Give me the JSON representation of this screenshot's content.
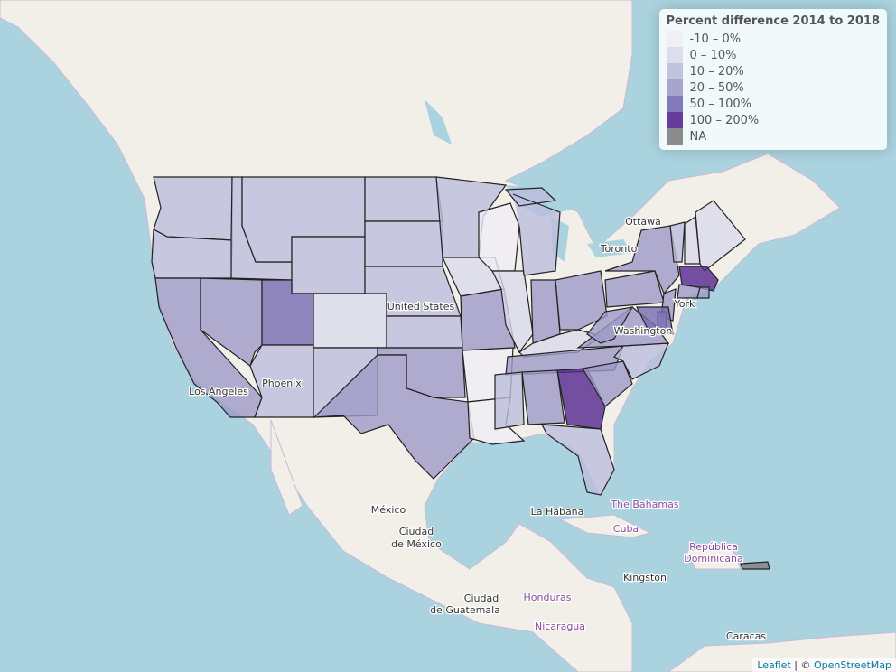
{
  "legend": {
    "title": "Percent difference 2014 to 2018",
    "items": [
      {
        "label": "-10 – 0%",
        "color": "#efedf5"
      },
      {
        "label": "0 – 10%",
        "color": "#dadaeb"
      },
      {
        "label": "10 – 20%",
        "color": "#bcbddc"
      },
      {
        "label": "20 – 50%",
        "color": "#9e9ac8"
      },
      {
        "label": "50 – 100%",
        "color": "#756bb1"
      },
      {
        "label": "100 – 200%",
        "color": "#54278f"
      },
      {
        "label": "NA",
        "color": "#808080"
      }
    ]
  },
  "places": [
    "Ottawa",
    "Toronto",
    "York",
    "Washington",
    "United States",
    "Los Angeles",
    "Phoenix",
    "México",
    "Ciudad",
    "de México",
    "La Habana",
    "The Bahamas",
    "Cuba",
    "República",
    "Dominicana",
    "Kingston",
    "Ciudad",
    "de Guatemala",
    "Honduras",
    "Nicaragua",
    "Caracas"
  ],
  "attribution": {
    "leaflet": "Leaflet",
    "separator": "| ©",
    "osm": "OpenStreetMap"
  }
}
